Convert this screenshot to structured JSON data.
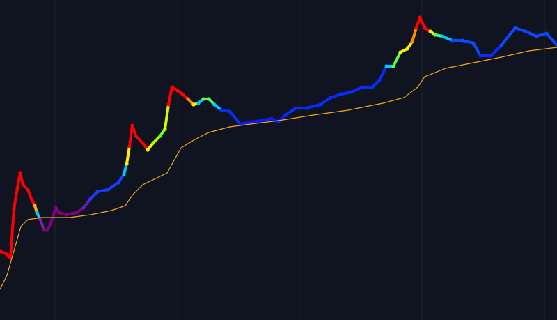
{
  "chart_data": {
    "type": "line",
    "xlim": [
      0,
      800
    ],
    "ylim": [
      0,
      459
    ],
    "xticks": [
      79,
      255,
      430,
      606,
      782
    ],
    "grid": true,
    "background": "#0f1420",
    "grid_color": "#1c2330",
    "series": [
      {
        "x": [
          0,
          10,
          15,
          20,
          25,
          29,
          33,
          40,
          45,
          50,
          53,
          58,
          63,
          68,
          73,
          80,
          85,
          95,
          110,
          120,
          130,
          140,
          155,
          170,
          178,
          182,
          186,
          190,
          195,
          205,
          212,
          220,
          230,
          237,
          242,
          247,
          255,
          262,
          270,
          278,
          285,
          292,
          300,
          308,
          318,
          330,
          345,
          360,
          375,
          390,
          400,
          410,
          425,
          440,
          460,
          475,
          490,
          505,
          520,
          535,
          545,
          555,
          565,
          575,
          585,
          592,
          598,
          603,
          610,
          618,
          625,
          635,
          650,
          665,
          680,
          690,
          705,
          720,
          740,
          755,
          770,
          785,
          800
        ],
        "values": [
          99,
          94,
          89,
          159,
          189,
          211,
          194,
          187,
          174,
          164,
          154,
          144,
          129,
          129,
          139,
          161,
          154,
          151,
          154,
          161,
          174,
          184,
          187,
          197,
          209,
          224,
          249,
          279,
          264,
          254,
          244,
          254,
          264,
          274,
          309,
          334,
          329,
          324,
          317,
          309,
          311,
          317,
          317,
          309,
          301,
          299,
          281,
          284,
          286,
          289,
          284,
          294,
          304,
          304,
          309,
          319,
          324,
          327,
          334,
          334,
          344,
          364,
          364,
          384,
          389,
          399,
          419,
          434,
          419,
          414,
          409,
          407,
          401,
          401,
          397,
          379,
          379,
          394,
          419,
          414,
          407,
          411,
          394
        ],
        "colors": [
          "#ff0000",
          "#ff0000",
          "#ff0000",
          "#ff0000",
          "#ff0000",
          "#ff0000",
          "#ff0000",
          "#ff0000",
          "#ff0000",
          "#ffb000",
          "#00d0ff",
          "#8a1a9a",
          "#800080",
          "#800080",
          "#800080",
          "#800080",
          "#800080",
          "#800080",
          "#800080",
          "#5a20c0",
          "#1a3cff",
          "#1a3cff",
          "#1a3cff",
          "#1a3cff",
          "#00c8ff",
          "#ffee00",
          "#ff0000",
          "#ff0000",
          "#ff0000",
          "#ff0000",
          "#ffee00",
          "#aaff00",
          "#66ff33",
          "#ccff00",
          "#ff0000",
          "#ff0000",
          "#ff0000",
          "#ff0000",
          "#ff8c00",
          "#ffee00",
          "#00c8ff",
          "#55ff55",
          "#55ff55",
          "#00c8ff",
          "#0a2aff",
          "#0a2aff",
          "#0a1aff",
          "#0a1aff",
          "#0a1aff",
          "#0a1aff",
          "#0a1aff",
          "#0a2aff",
          "#0a2aff",
          "#0a2aff",
          "#0a2aff",
          "#0a2aff",
          "#0a2aff",
          "#0a2aff",
          "#0a2aff",
          "#0a2aff",
          "#0a2aff",
          "#00c8ff",
          "#55ff55",
          "#ffee00",
          "#ffee00",
          "#ff8c00",
          "#ff0000",
          "#ff0000",
          "#ff0000",
          "#ffee00",
          "#55ff55",
          "#00c8ff",
          "#0a4aff",
          "#0a4aff",
          "#0a4aff",
          "#0a2aff",
          "#0a2aff",
          "#0a4aff",
          "#0a4aff",
          "#0a4aff",
          "#0a4aff",
          "#0a4aff",
          "#0a4aff"
        ]
      },
      {
        "x": [
          0,
          10,
          20,
          30,
          40,
          60,
          100,
          130,
          160,
          180,
          190,
          205,
          240,
          250,
          260,
          280,
          300,
          330,
          360,
          400,
          450,
          500,
          550,
          580,
          600,
          610,
          640,
          680,
          720,
          760,
          800
        ],
        "values": [
          44,
          64,
          99,
          134,
          144,
          147,
          147,
          151,
          157,
          164,
          179,
          194,
          211,
          229,
          247,
          259,
          269,
          277,
          281,
          286,
          294,
          301,
          311,
          319,
          334,
          349,
          361,
          369,
          377,
          386,
          391
        ],
        "color": "#f5a623"
      }
    ]
  }
}
